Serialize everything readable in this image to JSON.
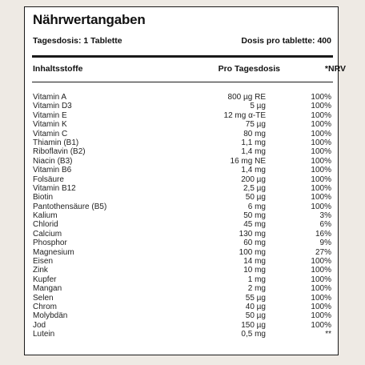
{
  "title": "Nährwertangaben",
  "daily_dose": "Tagesdosis: 1 Tablette",
  "doses_per": "Dosis pro tablette: 400",
  "headers": {
    "ingredient": "Inhaltsstoffe",
    "amount": "Pro Tagesdosis",
    "nrv": "*NRV"
  },
  "rows": [
    {
      "name": "Vitamin A",
      "amount": "800 µg RE",
      "nrv": "100%"
    },
    {
      "name": "Vitamin D3",
      "amount": "5 µg",
      "nrv": "100%"
    },
    {
      "name": "Vitamin E",
      "amount": "12 mg α-TE",
      "nrv": "100%"
    },
    {
      "name": "Vitamin K",
      "amount": "75 µg",
      "nrv": "100%"
    },
    {
      "name": "Vitamin C",
      "amount": "80 mg",
      "nrv": "100%"
    },
    {
      "name": "Thiamin (B1)",
      "amount": "1,1 mg",
      "nrv": "100%"
    },
    {
      "name": "Riboflavin (B2)",
      "amount": "1,4 mg",
      "nrv": "100%"
    },
    {
      "name": "Niacin (B3)",
      "amount": "16 mg NE",
      "nrv": "100%"
    },
    {
      "name": "Vitamin B6",
      "amount": "1,4 mg",
      "nrv": "100%"
    },
    {
      "name": "Folsäure",
      "amount": "200 µg",
      "nrv": "100%"
    },
    {
      "name": "Vitamin B12",
      "amount": "2,5 µg",
      "nrv": "100%"
    },
    {
      "name": "Biotin",
      "amount": "50 µg",
      "nrv": "100%"
    },
    {
      "name": "Pantothensäure (B5)",
      "amount": "6 mg",
      "nrv": "100%"
    },
    {
      "name": "Kalium",
      "amount": "50 mg",
      "nrv": "3%"
    },
    {
      "name": "Chlorid",
      "amount": "45 mg",
      "nrv": "6%"
    },
    {
      "name": "Calcium",
      "amount": "130 mg",
      "nrv": "16%"
    },
    {
      "name": "Phosphor",
      "amount": "60 mg",
      "nrv": "9%"
    },
    {
      "name": "Magnesium",
      "amount": "100 mg",
      "nrv": "27%"
    },
    {
      "name": "Eisen",
      "amount": "14 mg",
      "nrv": "100%"
    },
    {
      "name": "Zink",
      "amount": "10 mg",
      "nrv": "100%"
    },
    {
      "name": "Kupfer",
      "amount": "1 mg",
      "nrv": "100%"
    },
    {
      "name": "Mangan",
      "amount": "2 mg",
      "nrv": "100%"
    },
    {
      "name": "Selen",
      "amount": "55 µg",
      "nrv": "100%"
    },
    {
      "name": "Chrom",
      "amount": "40 µg",
      "nrv": "100%"
    },
    {
      "name": "Molybdän",
      "amount": "50 µg",
      "nrv": "100%"
    },
    {
      "name": "Jod",
      "amount": "150 µg",
      "nrv": "100%"
    },
    {
      "name": "Lutein",
      "amount": "0,5 mg",
      "nrv": "**"
    }
  ]
}
